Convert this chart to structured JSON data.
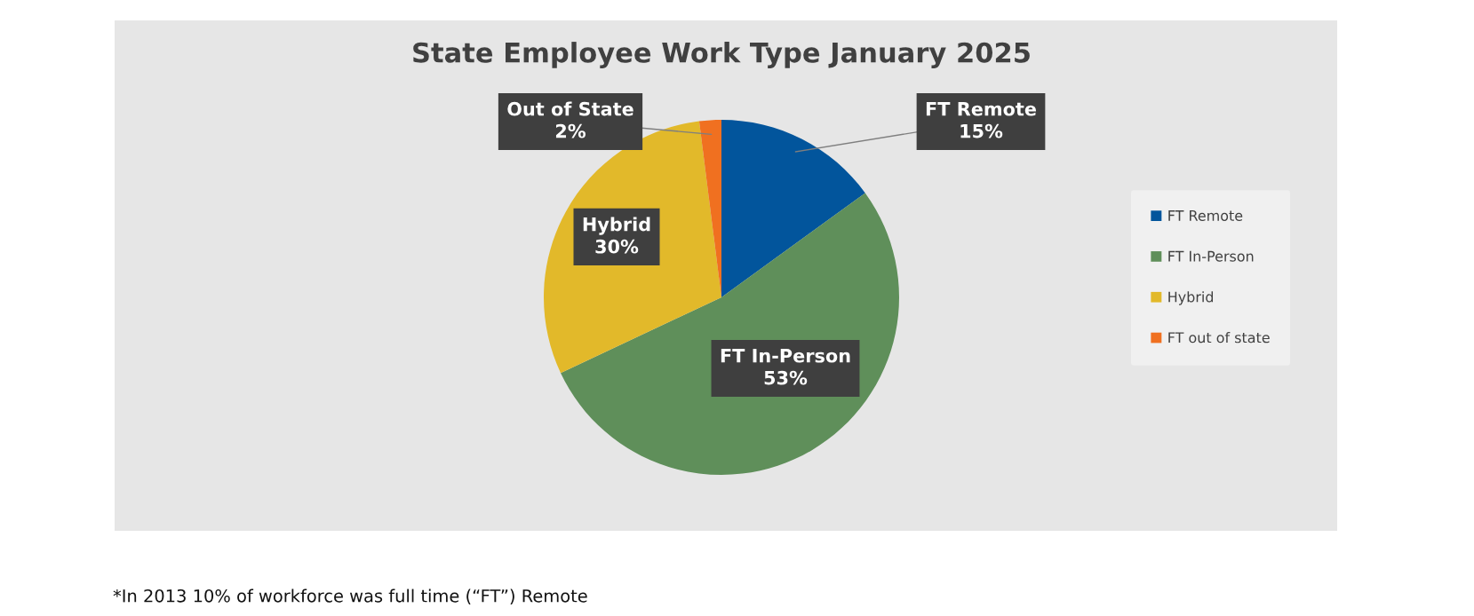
{
  "chart_data": {
    "type": "pie",
    "title": "State Employee Work Type January 2025",
    "categories": [
      "FT Remote",
      "FT In-Person",
      "Hybrid",
      "FT out of state"
    ],
    "values": [
      15,
      53,
      30,
      2
    ],
    "colors": [
      "#02559c",
      "#5f8f5a",
      "#e2b92a",
      "#f07020"
    ],
    "value_labels": [
      "FT Remote\n15%",
      "FT In-Person\n53%",
      "Hybrid\n30%",
      "Out of State\n2%"
    ],
    "legend": "right",
    "annotations": [
      "*In 2013 10% of workforce was full time (“FT”) Remote"
    ]
  }
}
